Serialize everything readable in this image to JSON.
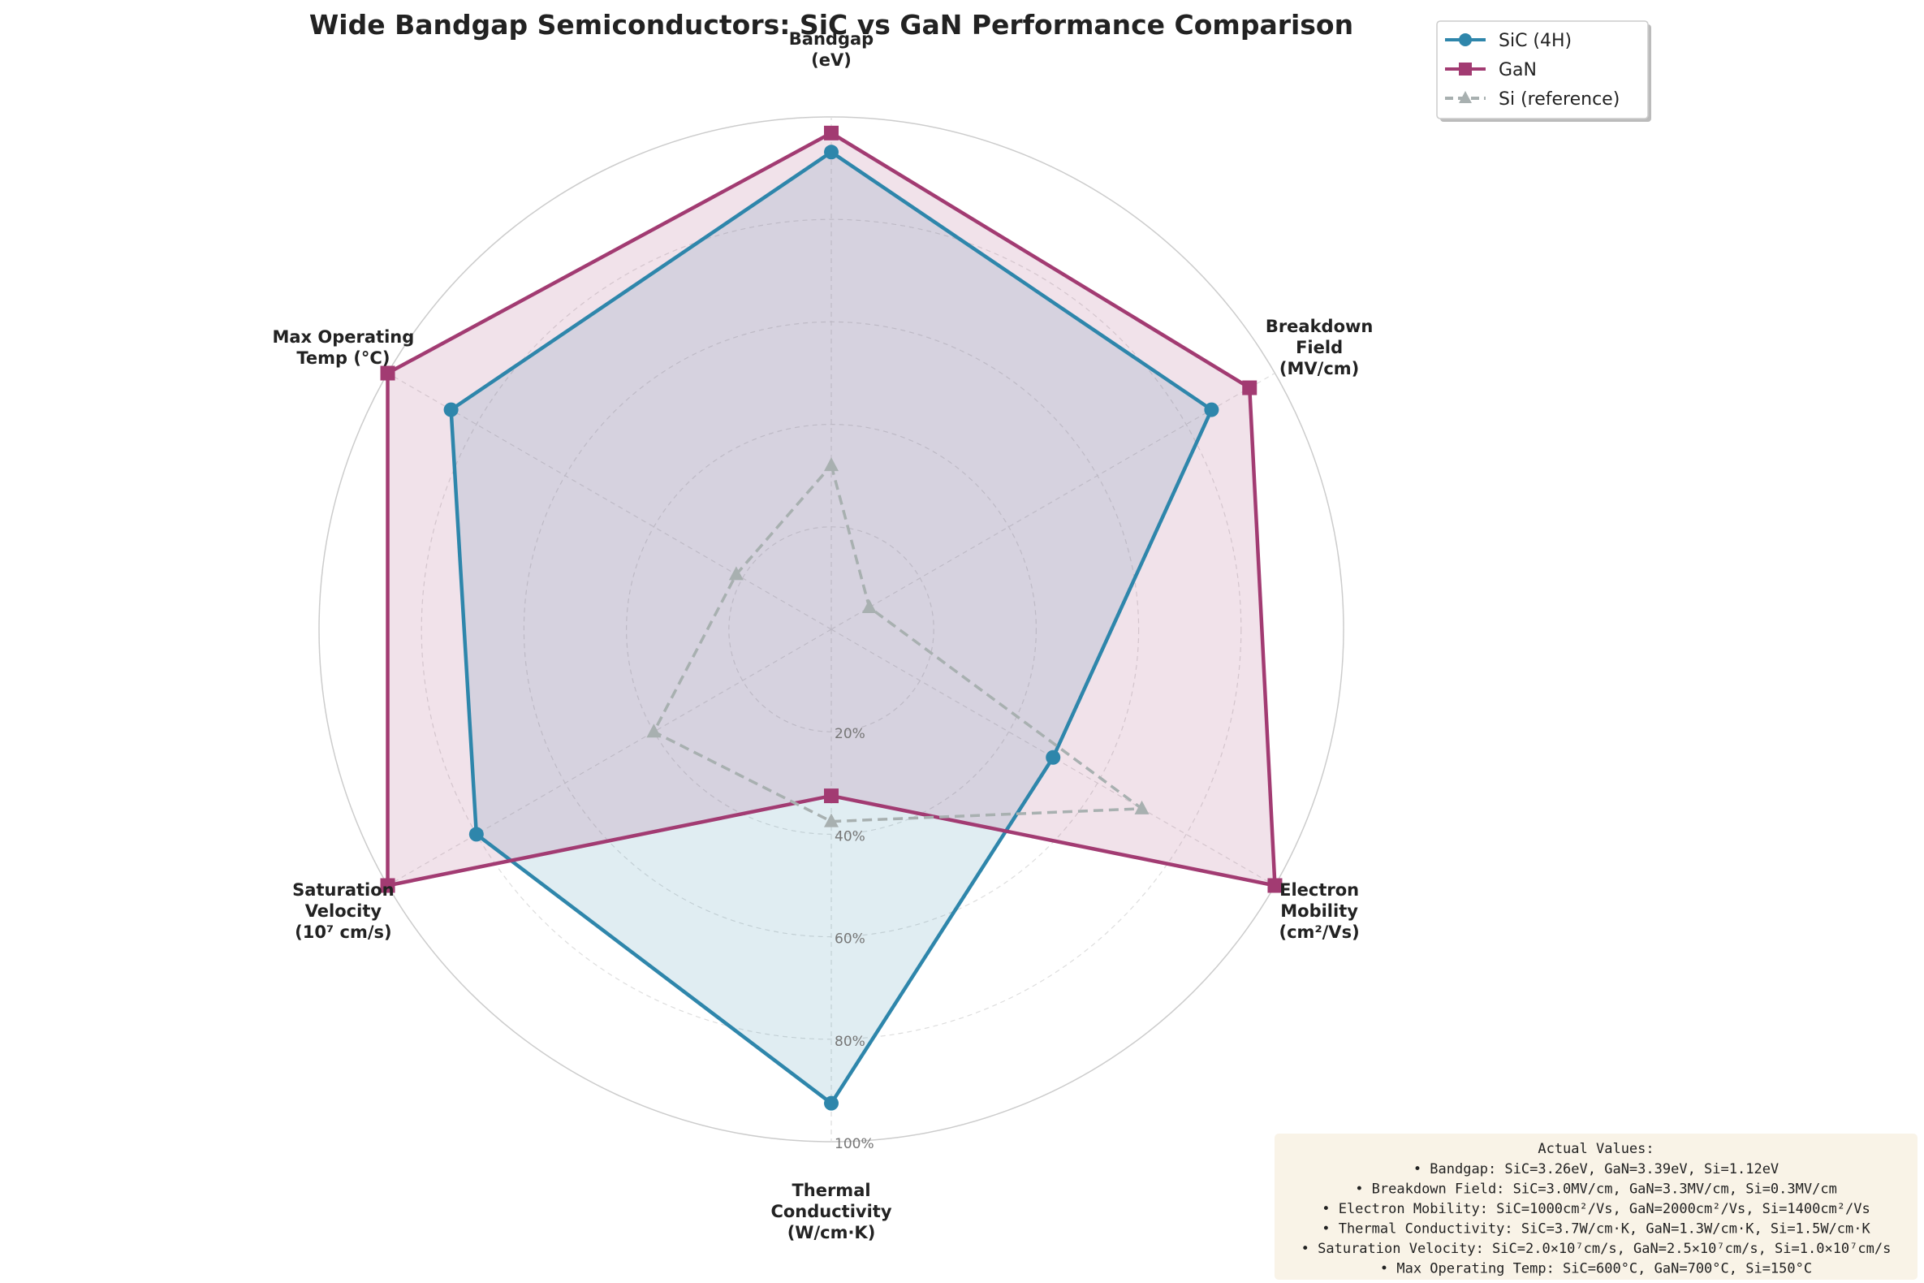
{
  "chart_data": {
    "type": "radar",
    "title": "Wide Bandgap Semiconductors: SiC vs GaN Performance Comparison",
    "axes": [
      {
        "label": [
          "Bandgap",
          "(eV)"
        ],
        "max": 3.5
      },
      {
        "label": [
          "Breakdown",
          "Field",
          "(MV/cm)"
        ],
        "max": 3.5
      },
      {
        "label": [
          "Electron",
          "Mobility",
          "(cm²/Vs)"
        ],
        "max": 2000
      },
      {
        "label": [
          "Thermal",
          "Conductivity",
          "(W/cm·K)"
        ],
        "max": 4
      },
      {
        "label": [
          "Saturation",
          "Velocity",
          "(10⁷ cm/s)"
        ],
        "max": 2.5
      },
      {
        "label": [
          "Max Operating",
          "Temp (°C)"
        ],
        "max": 700
      }
    ],
    "radial_ticks": [
      "20%",
      "40%",
      "60%",
      "80%",
      "100%"
    ],
    "radial_range": [
      0,
      100
    ],
    "series": [
      {
        "name": "SiC (4H)",
        "values": [
          3.26,
          3.0,
          1000,
          3.7,
          2.0,
          600
        ],
        "color": "#2e86ab",
        "marker": "circle",
        "style": "solid",
        "fill": "#2e86ab"
      },
      {
        "name": "GaN",
        "values": [
          3.39,
          3.3,
          2000,
          1.3,
          2.5,
          700
        ],
        "color": "#a23b72",
        "marker": "square",
        "style": "solid",
        "fill": "#a23b72"
      },
      {
        "name": "Si (reference)",
        "values": [
          1.12,
          0.3,
          1400,
          1.5,
          1.0,
          150
        ],
        "color": "#a8b0b0",
        "marker": "triangle",
        "style": "dashed",
        "fill": "none"
      }
    ],
    "legend_position": "top-right",
    "annotation": {
      "title": "Actual Values:",
      "lines": [
        "• Bandgap: SiC=3.26eV, GaN=3.39eV, Si=1.12eV",
        "• Breakdown Field: SiC=3.0MV/cm, GaN=3.3MV/cm, Si=0.3MV/cm",
        "• Electron Mobility: SiC=1000cm²/Vs, GaN=2000cm²/Vs, Si=1400cm²/Vs",
        "• Thermal Conductivity: SiC=3.7W/cm·K, GaN=1.3W/cm·K, Si=1.5W/cm·K",
        "• Saturation Velocity: SiC=2.0×10⁷cm/s, GaN=2.5×10⁷cm/s, Si=1.0×10⁷cm/s",
        "• Max Operating Temp: SiC=600°C, GaN=700°C, Si=150°C"
      ]
    }
  }
}
